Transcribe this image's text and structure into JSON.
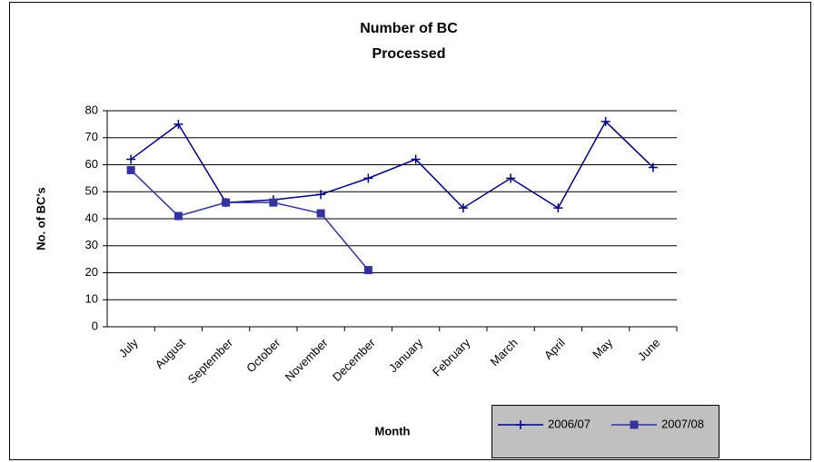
{
  "chart_data": {
    "type": "line",
    "title": "Number of BC Processed",
    "x_label": "Month",
    "y_label": "No. of BC's",
    "categories": [
      "July",
      "August",
      "September",
      "October",
      "November",
      "December",
      "January",
      "February",
      "March",
      "April",
      "May",
      "June"
    ],
    "series": [
      {
        "name": "2006/07",
        "color": "#000080",
        "marker": "plus",
        "values": [
          62,
          75,
          46,
          47,
          49,
          55,
          62,
          44,
          55,
          44,
          76,
          59
        ]
      },
      {
        "name": "2007/08",
        "color": "#3333a0",
        "marker": "square",
        "values": [
          58,
          41,
          46,
          46,
          42,
          21,
          null,
          null,
          null,
          null,
          null,
          null
        ]
      }
    ],
    "ylim": [
      0,
      80
    ],
    "yticks": [
      0,
      10,
      20,
      30,
      40,
      50,
      60,
      70,
      80
    ],
    "grid": true
  }
}
